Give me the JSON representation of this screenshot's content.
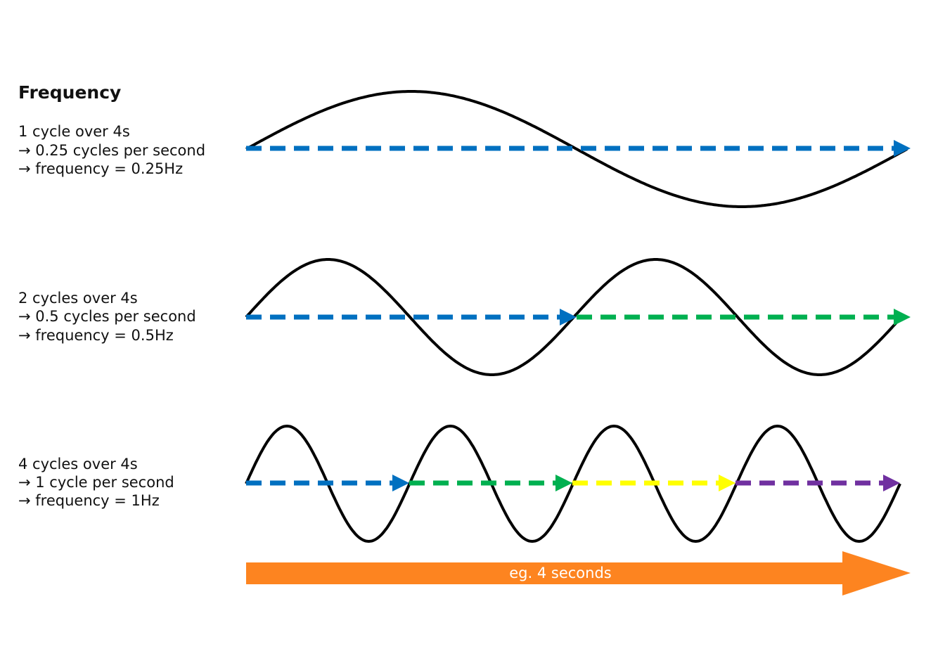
{
  "header": {
    "title": "Frequency"
  },
  "rows": [
    {
      "lines": [
        "1 cycle over 4s",
        "→ 0.25 cycles per second",
        "→ frequency = 0.25Hz"
      ]
    },
    {
      "lines": [
        "2 cycles over 4s",
        "→ 0.5 cycles per second",
        "→ frequency = 0.5Hz"
      ]
    },
    {
      "lines": [
        "4 cycles over 4s",
        "→ 1 cycle per second",
        "→ frequency = 1Hz"
      ]
    }
  ],
  "timeline": {
    "label": "eg. 4 seconds"
  }
}
